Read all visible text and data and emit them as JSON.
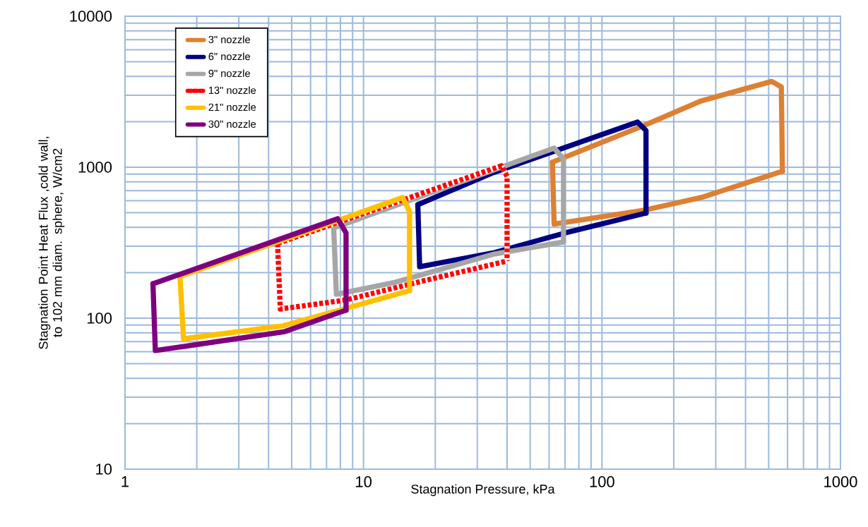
{
  "chart_data": {
    "type": "line",
    "xlabel": "Stagnation Pressure, kPa",
    "ylabel": "Stagnation Point Heat Flux ,cold wall, to 102 mm diam. sphere, W/cm2",
    "log": "xy",
    "grid": true,
    "legend": "top left",
    "marker": "none",
    "xlim": [
      1,
      1000
    ],
    "ylim": [
      10,
      10000
    ],
    "xticks": [
      1,
      10,
      100,
      1000
    ],
    "yticks": [
      10,
      100,
      1000,
      10000
    ],
    "series": [
      {
        "name": "3\" nozzle",
        "color": "#dd8033",
        "x": [
          62,
          150,
          261,
          515,
          565,
          571
        ],
        "values": [
          1080,
          1890,
          2750,
          3700,
          3400,
          940
        ]
      },
      {
        "color": "#dd8033",
        "x": [
          62,
          63,
          151,
          261,
          571
        ],
        "values": [
          1080,
          420,
          520,
          630,
          940
        ]
      },
      {
        "name": "6\" nozzle",
        "color": "#000080",
        "x": [
          16.9,
          35,
          141,
          153,
          153
        ],
        "values": [
          565,
          920,
          1990,
          1750,
          497
        ]
      },
      {
        "color": "#000080",
        "x": [
          16.9,
          17.2,
          35.4,
          70,
          153
        ],
        "values": [
          565,
          219,
          272,
          367,
          497
        ]
      },
      {
        "name": "9\" nozzle",
        "color": "#a6a6a6",
        "x": [
          7.5,
          63,
          69,
          69
        ],
        "values": [
          396,
          1337,
          1138,
          320
        ]
      },
      {
        "color": "#a6a6a6",
        "x": [
          7.5,
          7.7,
          13.6,
          35.4,
          69
        ],
        "values": [
          396,
          144,
          173,
          266,
          320
        ]
      },
      {
        "name": "13\" nozzle",
        "color": "#ff0000",
        "line_style": "dotted",
        "x": [
          4.36,
          37.9,
          40,
          40
        ],
        "values": [
          313,
          1021,
          869,
          239
        ]
      },
      {
        "color": "#ff0000",
        "line_style": "dotted",
        "x": [
          4.36,
          4.48,
          8.45,
          17.9,
          40
        ],
        "values": [
          313,
          115,
          132,
          177,
          239
        ]
      },
      {
        "name": "21\" nozzle",
        "color": "#ffc000",
        "x": [
          1.7,
          14.6,
          15.6,
          15.6
        ],
        "values": [
          189,
          630,
          508,
          152
        ]
      },
      {
        "color": "#ffc000",
        "x": [
          1.7,
          1.76,
          4.6,
          15.6
        ],
        "values": [
          189,
          73,
          89,
          152
        ]
      },
      {
        "name": "30\" nozzle",
        "color": "#7f007f",
        "x": [
          1.31,
          7.8,
          8.45,
          8.45
        ],
        "values": [
          169,
          456,
          367,
          113
        ]
      },
      {
        "color": "#7f007f",
        "x": [
          1.31,
          1.34,
          4.67,
          8.45
        ],
        "values": [
          169,
          61,
          81.5,
          113
        ]
      }
    ]
  }
}
